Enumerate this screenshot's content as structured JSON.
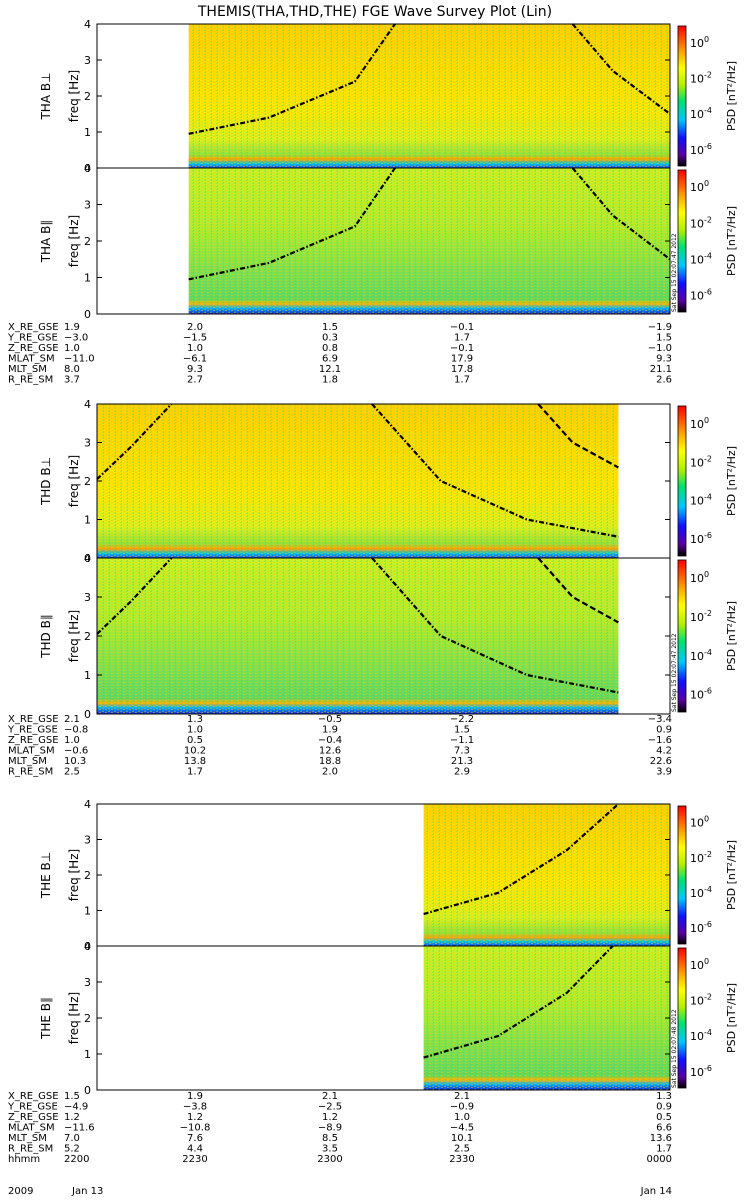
{
  "title": "THEMIS(THA,THD,THE) FGE Wave Survey Plot (Lin)",
  "colorbar": {
    "label": "PSD [nT²/Hz]",
    "ticks": [
      {
        "text": "10",
        "exp": "0"
      },
      {
        "text": "10",
        "exp": "-2"
      },
      {
        "text": "10",
        "exp": "-4"
      },
      {
        "text": "10",
        "exp": "-6"
      }
    ],
    "stamp": "Sat Sep 15 02:07:47 2012",
    "stamp_the": "Sat Sep 15 02:07:48 2012"
  },
  "freq_ticks": [
    "0",
    "1",
    "2",
    "3",
    "4"
  ],
  "colors": {
    "line": "#000000"
  },
  "chart_data": [
    {
      "type": "heatmap",
      "probe": "THA",
      "panel": "perp",
      "ylabel": "freq [Hz]",
      "probe_label": "THA B⊥",
      "ylim": [
        0,
        4
      ],
      "data_start": 0.16,
      "data_end": 1.0,
      "curves": [
        {
          "style": "dash-dot",
          "points": [
            [
              0.16,
              0.95
            ],
            [
              0.3,
              1.4
            ],
            [
              0.45,
              2.4
            ],
            [
              0.52,
              4.0
            ]
          ]
        },
        {
          "style": "dash-dot",
          "points": [
            [
              0.83,
              4.0
            ],
            [
              0.9,
              2.7
            ],
            [
              1.0,
              1.5
            ]
          ]
        }
      ]
    },
    {
      "type": "heatmap",
      "probe": "THA",
      "panel": "par",
      "ylabel": "freq [Hz]",
      "probe_label": "THA B∥",
      "ylim": [
        0,
        4
      ],
      "data_start": 0.16,
      "data_end": 1.0,
      "curves": [
        {
          "style": "dash-dot",
          "points": [
            [
              0.16,
              0.95
            ],
            [
              0.3,
              1.4
            ],
            [
              0.45,
              2.4
            ],
            [
              0.52,
              4.0
            ]
          ]
        },
        {
          "style": "dash-dot",
          "points": [
            [
              0.83,
              4.0
            ],
            [
              0.9,
              2.7
            ],
            [
              1.0,
              1.5
            ]
          ]
        }
      ]
    },
    {
      "type": "heatmap",
      "probe": "THD",
      "panel": "perp",
      "ylabel": "freq [Hz]",
      "probe_label": "THD B⊥",
      "ylim": [
        0,
        4
      ],
      "data_start": 0.0,
      "data_end": 0.91,
      "curves": [
        {
          "style": "dash-dot",
          "points": [
            [
              0.0,
              2.05
            ],
            [
              0.06,
              2.9
            ],
            [
              0.13,
              4.0
            ]
          ]
        },
        {
          "style": "dash-dot",
          "points": [
            [
              0.48,
              4.0
            ],
            [
              0.6,
              2.0
            ],
            [
              0.75,
              1.0
            ],
            [
              0.91,
              0.55
            ]
          ]
        },
        {
          "style": "dash",
          "points": [
            [
              0.77,
              4.0
            ],
            [
              0.83,
              3.0
            ],
            [
              0.91,
              2.35
            ]
          ]
        }
      ]
    },
    {
      "type": "heatmap",
      "probe": "THD",
      "panel": "par",
      "ylabel": "freq [Hz]",
      "probe_label": "THD B∥",
      "ylim": [
        0,
        4
      ],
      "data_start": 0.0,
      "data_end": 0.91,
      "curves": [
        {
          "style": "dash-dot",
          "points": [
            [
              0.0,
              2.05
            ],
            [
              0.06,
              2.9
            ],
            [
              0.13,
              4.0
            ]
          ]
        },
        {
          "style": "dash-dot",
          "points": [
            [
              0.48,
              4.0
            ],
            [
              0.6,
              2.0
            ],
            [
              0.75,
              1.0
            ],
            [
              0.91,
              0.55
            ]
          ]
        },
        {
          "style": "dash",
          "points": [
            [
              0.77,
              4.0
            ],
            [
              0.83,
              3.0
            ],
            [
              0.91,
              2.35
            ]
          ]
        }
      ]
    },
    {
      "type": "heatmap",
      "probe": "THE",
      "panel": "perp",
      "ylabel": "freq [Hz]",
      "probe_label": "THE B⊥",
      "ylim": [
        0,
        4
      ],
      "data_start": 0.57,
      "data_end": 1.0,
      "curves": [
        {
          "style": "dash-dot",
          "points": [
            [
              0.57,
              0.9
            ],
            [
              0.7,
              1.5
            ],
            [
              0.82,
              2.7
            ],
            [
              0.91,
              4.0
            ]
          ]
        }
      ]
    },
    {
      "type": "heatmap",
      "probe": "THE",
      "panel": "par",
      "ylabel": "freq [Hz]",
      "probe_label": "THE B∥",
      "ylim": [
        0,
        4
      ],
      "data_start": 0.57,
      "data_end": 1.0,
      "curves": [
        {
          "style": "dash-dot",
          "points": [
            [
              0.57,
              0.9
            ],
            [
              0.7,
              1.5
            ],
            [
              0.82,
              2.7
            ],
            [
              0.9,
              4.0
            ]
          ]
        }
      ]
    }
  ],
  "orbit_tables": [
    {
      "probe": "THA",
      "rows": [
        {
          "label": "X_RE_GSE",
          "values": [
            "1.9",
            "2.0",
            "1.5",
            "−0.1",
            "−1.9"
          ]
        },
        {
          "label": "Y_RE_GSE",
          "values": [
            "−3.0",
            "−1.5",
            "0.3",
            "1.7",
            "1.5"
          ]
        },
        {
          "label": "Z_RE_GSE",
          "values": [
            "1.0",
            "1.0",
            "0.8",
            "−0.1",
            "−1.0"
          ]
        },
        {
          "label": "MLAT_SM",
          "values": [
            "−11.0",
            "−6.1",
            "6.9",
            "17.9",
            "9.3"
          ]
        },
        {
          "label": "MLT_SM",
          "values": [
            "8.0",
            "9.3",
            "12.1",
            "17.8",
            "21.1"
          ]
        },
        {
          "label": "R_RE_SM",
          "values": [
            "3.7",
            "2.7",
            "1.8",
            "1.7",
            "2.6"
          ]
        }
      ]
    },
    {
      "probe": "THD",
      "rows": [
        {
          "label": "X_RE_GSE",
          "values": [
            "2.1",
            "1.3",
            "−0.5",
            "−2.2",
            "−3.4"
          ]
        },
        {
          "label": "Y_RE_GSE",
          "values": [
            "−0.8",
            "1.0",
            "1.9",
            "1.5",
            "0.9"
          ]
        },
        {
          "label": "Z_RE_GSE",
          "values": [
            "1.0",
            "0.5",
            "−0.4",
            "−1.1",
            "−1.6"
          ]
        },
        {
          "label": "MLAT_SM",
          "values": [
            "−0.6",
            "10.2",
            "12.6",
            "7.3",
            "4.2"
          ]
        },
        {
          "label": "MLT_SM",
          "values": [
            "10.3",
            "13.8",
            "18.8",
            "21.3",
            "22.6"
          ]
        },
        {
          "label": "R_RE_SM",
          "values": [
            "2.5",
            "1.7",
            "2.0",
            "2.9",
            "3.9"
          ]
        }
      ]
    },
    {
      "probe": "THE",
      "rows": [
        {
          "label": "X_RE_GSE",
          "values": [
            "1.5",
            "1.9",
            "2.1",
            "2.1",
            "1.3"
          ]
        },
        {
          "label": "Y_RE_GSE",
          "values": [
            "−4.9",
            "−3.8",
            "−2.5",
            "−0.9",
            "0.9"
          ]
        },
        {
          "label": "Z_RE_GSE",
          "values": [
            "1.2",
            "1.2",
            "1.2",
            "1.0",
            "0.5"
          ]
        },
        {
          "label": "MLAT_SM",
          "values": [
            "−11.6",
            "−10.8",
            "−8.9",
            "−4.5",
            "6.6"
          ]
        },
        {
          "label": "MLT_SM",
          "values": [
            "7.0",
            "7.6",
            "8.5",
            "10.1",
            "13.6"
          ]
        },
        {
          "label": "R_RE_SM",
          "values": [
            "5.2",
            "4.4",
            "3.5",
            "2.5",
            "1.7"
          ]
        },
        {
          "label": "hhmm",
          "values": [
            "2200",
            "2230",
            "2300",
            "2330",
            "0000"
          ]
        }
      ]
    }
  ],
  "date_left": {
    "year": "2009",
    "day": "Jan 13"
  },
  "date_right": "Jan 14"
}
